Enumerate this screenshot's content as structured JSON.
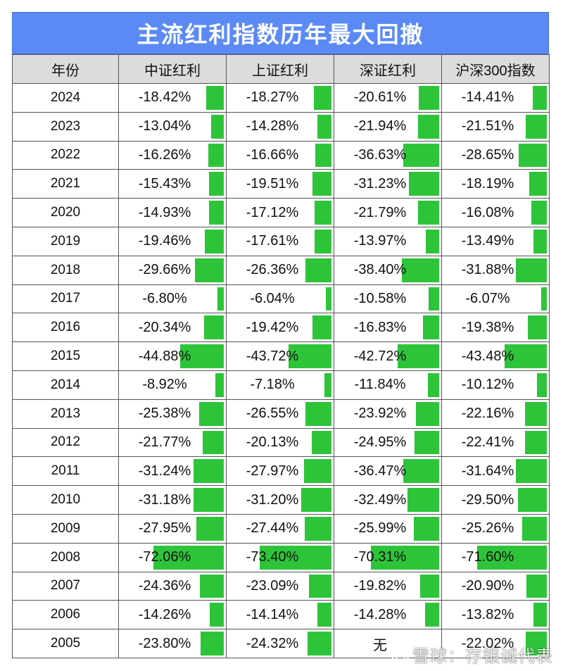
{
  "chart_data": {
    "type": "table",
    "title": "主流红利指数历年最大回撤",
    "columns": [
      "年份",
      "中证红利",
      "上证红利",
      "深证红利",
      "沪深300指数"
    ],
    "bar_color": "#2ec43a",
    "header_color": "#5b8af5",
    "rows": [
      {
        "year": "2024",
        "cells": [
          {
            "text": "-18.42%",
            "value": 18.42
          },
          {
            "text": "-18.27%",
            "value": 18.27
          },
          {
            "text": "-20.61%",
            "value": 20.61
          },
          {
            "text": "-14.41%",
            "value": 14.41
          }
        ]
      },
      {
        "year": "2023",
        "cells": [
          {
            "text": "-13.04%",
            "value": 13.04
          },
          {
            "text": "-14.28%",
            "value": 14.28
          },
          {
            "text": "-21.94%",
            "value": 21.94
          },
          {
            "text": "-21.51%",
            "value": 21.51
          }
        ]
      },
      {
        "year": "2022",
        "cells": [
          {
            "text": "-16.26%",
            "value": 16.26
          },
          {
            "text": "-16.66%",
            "value": 16.66
          },
          {
            "text": "-36.63%",
            "value": 36.63
          },
          {
            "text": "-28.65%",
            "value": 28.65
          }
        ]
      },
      {
        "year": "2021",
        "cells": [
          {
            "text": "-15.43%",
            "value": 15.43
          },
          {
            "text": "-19.51%",
            "value": 19.51
          },
          {
            "text": "-31.23%",
            "value": 31.23
          },
          {
            "text": "-18.19%",
            "value": 18.19
          }
        ]
      },
      {
        "year": "2020",
        "cells": [
          {
            "text": "-14.93%",
            "value": 14.93
          },
          {
            "text": "-17.12%",
            "value": 17.12
          },
          {
            "text": "-21.79%",
            "value": 21.79
          },
          {
            "text": "-16.08%",
            "value": 16.08
          }
        ]
      },
      {
        "year": "2019",
        "cells": [
          {
            "text": "-19.46%",
            "value": 19.46
          },
          {
            "text": "-17.61%",
            "value": 17.61
          },
          {
            "text": "-13.97%",
            "value": 13.97
          },
          {
            "text": "-13.49%",
            "value": 13.49
          }
        ]
      },
      {
        "year": "2018",
        "cells": [
          {
            "text": "-29.66%",
            "value": 29.66
          },
          {
            "text": "-26.36%",
            "value": 26.36
          },
          {
            "text": "-38.40%",
            "value": 38.4
          },
          {
            "text": "-31.88%",
            "value": 31.88
          }
        ]
      },
      {
        "year": "2017",
        "cells": [
          {
            "text": "-6.80%",
            "value": 6.8
          },
          {
            "text": "-6.04%",
            "value": 6.04
          },
          {
            "text": "-10.58%",
            "value": 10.58
          },
          {
            "text": "-6.07%",
            "value": 6.07
          }
        ]
      },
      {
        "year": "2016",
        "cells": [
          {
            "text": "-20.34%",
            "value": 20.34
          },
          {
            "text": "-19.42%",
            "value": 19.42
          },
          {
            "text": "-16.83%",
            "value": 16.83
          },
          {
            "text": "-19.38%",
            "value": 19.38
          }
        ]
      },
      {
        "year": "2015",
        "cells": [
          {
            "text": "-44.88%",
            "value": 44.88
          },
          {
            "text": "-43.72%",
            "value": 43.72
          },
          {
            "text": "-42.72%",
            "value": 42.72
          },
          {
            "text": "-43.48%",
            "value": 43.48
          }
        ]
      },
      {
        "year": "2014",
        "cells": [
          {
            "text": "-8.92%",
            "value": 8.92
          },
          {
            "text": "-7.18%",
            "value": 7.18
          },
          {
            "text": "-11.84%",
            "value": 11.84
          },
          {
            "text": "-10.12%",
            "value": 10.12
          }
        ]
      },
      {
        "year": "2013",
        "cells": [
          {
            "text": "-25.38%",
            "value": 25.38
          },
          {
            "text": "-26.55%",
            "value": 26.55
          },
          {
            "text": "-23.92%",
            "value": 23.92
          },
          {
            "text": "-22.16%",
            "value": 22.16
          }
        ]
      },
      {
        "year": "2012",
        "cells": [
          {
            "text": "-21.77%",
            "value": 21.77
          },
          {
            "text": "-20.13%",
            "value": 20.13
          },
          {
            "text": "-24.95%",
            "value": 24.95
          },
          {
            "text": "-22.41%",
            "value": 22.41
          }
        ]
      },
      {
        "year": "2011",
        "cells": [
          {
            "text": "-31.24%",
            "value": 31.24
          },
          {
            "text": "-27.97%",
            "value": 27.97
          },
          {
            "text": "-36.47%",
            "value": 36.47
          },
          {
            "text": "-31.64%",
            "value": 31.64
          }
        ]
      },
      {
        "year": "2010",
        "cells": [
          {
            "text": "-31.18%",
            "value": 31.18
          },
          {
            "text": "-31.20%",
            "value": 31.2
          },
          {
            "text": "-32.49%",
            "value": 32.49
          },
          {
            "text": "-29.50%",
            "value": 29.5
          }
        ]
      },
      {
        "year": "2009",
        "cells": [
          {
            "text": "-27.95%",
            "value": 27.95
          },
          {
            "text": "-27.44%",
            "value": 27.44
          },
          {
            "text": "-25.99%",
            "value": 25.99
          },
          {
            "text": "-25.26%",
            "value": 25.26
          }
        ]
      },
      {
        "year": "2008",
        "cells": [
          {
            "text": "-72.06%",
            "value": 72.06
          },
          {
            "text": "-73.40%",
            "value": 73.4
          },
          {
            "text": "-70.31%",
            "value": 70.31
          },
          {
            "text": "-71.60%",
            "value": 71.6
          }
        ]
      },
      {
        "year": "2007",
        "cells": [
          {
            "text": "-24.36%",
            "value": 24.36
          },
          {
            "text": "-23.09%",
            "value": 23.09
          },
          {
            "text": "-19.82%",
            "value": 19.82
          },
          {
            "text": "-20.90%",
            "value": 20.9
          }
        ]
      },
      {
        "year": "2006",
        "cells": [
          {
            "text": "-14.26%",
            "value": 14.26
          },
          {
            "text": "-14.14%",
            "value": 14.14
          },
          {
            "text": "-14.28%",
            "value": 14.28
          },
          {
            "text": "-13.82%",
            "value": 13.82
          }
        ]
      },
      {
        "year": "2005",
        "cells": [
          {
            "text": "-23.80%",
            "value": 23.8
          },
          {
            "text": "-24.32%",
            "value": 24.32
          },
          {
            "text": "无",
            "value": null
          },
          {
            "text": "-22.02%",
            "value": 22.02
          }
        ]
      }
    ]
  },
  "watermark": {
    "text": "雪球：存银诚代表",
    "icon": "snowball-logo-icon"
  }
}
